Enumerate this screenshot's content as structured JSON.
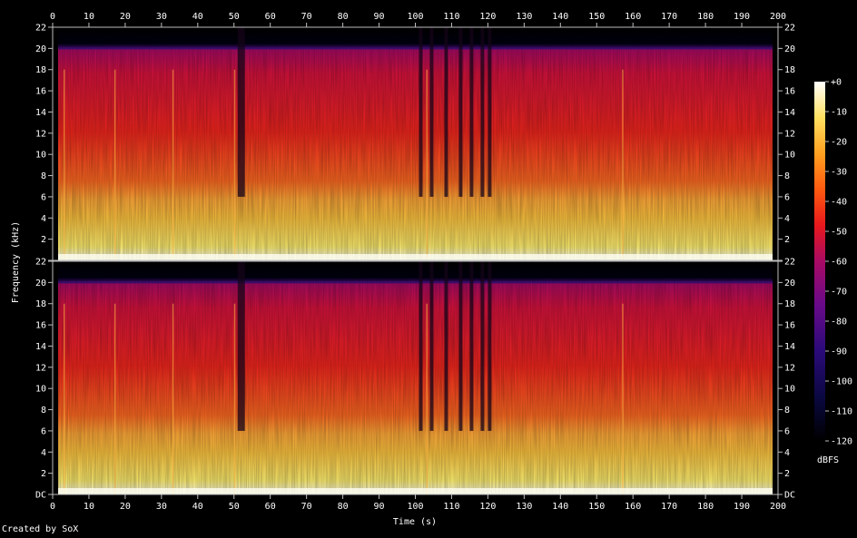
{
  "chart_data": {
    "type": "heatmap",
    "xlabel": "Time (s)",
    "ylabel": "Frequency (kHz)",
    "colorbar_label": "dBFS",
    "credit": "Created by SoX",
    "xlim": [
      0,
      200
    ],
    "ylim": [
      0,
      22
    ],
    "clim": [
      -120,
      0
    ],
    "x_ticks": [
      0,
      10,
      20,
      30,
      40,
      50,
      60,
      70,
      80,
      90,
      100,
      110,
      120,
      130,
      140,
      150,
      160,
      170,
      180,
      190,
      200
    ],
    "y_ticks": [
      "DC",
      "2",
      "4",
      "6",
      "8",
      "10",
      "12",
      "14",
      "16",
      "18",
      "20",
      "22"
    ],
    "colorbar_ticks": [
      "+0",
      "-10",
      "-20",
      "-30",
      "-40",
      "-50",
      "-60",
      "-70",
      "-80",
      "-90",
      "-100",
      "-110",
      "-120"
    ],
    "channels": 2,
    "audio_extent_s": [
      1.5,
      198.5
    ],
    "bandlimit_khz": 20,
    "colors": {
      "bg": "#000000",
      "frame": "#bdbdbd",
      "hot": "#ffffe0",
      "cold": "#000000"
    },
    "dark_gaps_s": [
      [
        51,
        53
      ],
      [
        101,
        102
      ],
      [
        104,
        105
      ],
      [
        108,
        109
      ],
      [
        112,
        113
      ],
      [
        115,
        116
      ],
      [
        118,
        119
      ],
      [
        120,
        121
      ]
    ],
    "onset_transients_s": [
      3,
      17,
      33,
      50,
      103,
      157
    ]
  }
}
